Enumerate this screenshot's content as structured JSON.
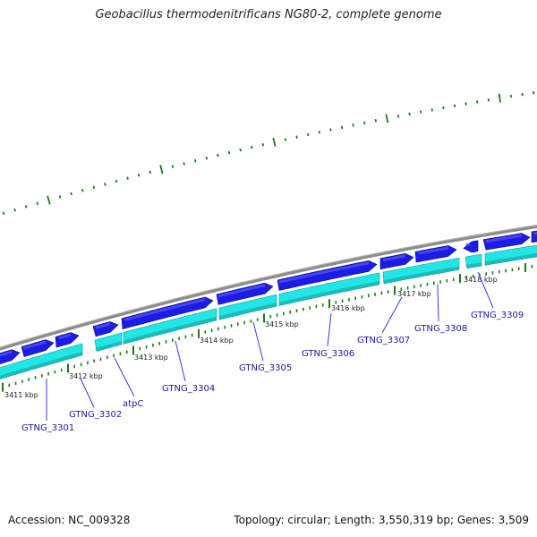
{
  "title": "Geobacillus thermodenitrificans NG80-2, complete genome",
  "footer": {
    "accession": "Accession: NC_009328",
    "summary": "Topology: circular; Length: 3,550,319 bp; Genes: 3,509"
  },
  "colors": {
    "forward_gene": "#1c1ce6",
    "reverse_gene": "#22e6e6",
    "backbone": "#8c8c8c",
    "ticks": "#1e7a1e",
    "label_line": "#3a3ae0"
  },
  "scale_labels": [
    "3411 kbp",
    "3412 kbp",
    "3413 kbp",
    "3414 kbp",
    "3415 kbp",
    "3416 kbp",
    "3417 kbp",
    "3418 kbp"
  ],
  "genes": [
    {
      "label": "GTNG_3301"
    },
    {
      "label": "GTNG_3302"
    },
    {
      "label": "atpC"
    },
    {
      "label": "GTNG_3304"
    },
    {
      "label": "GTNG_3305"
    },
    {
      "label": "GTNG_3306"
    },
    {
      "label": "GTNG_3307"
    },
    {
      "label": "GTNG_3308"
    },
    {
      "label": "GTNG_3309"
    }
  ]
}
